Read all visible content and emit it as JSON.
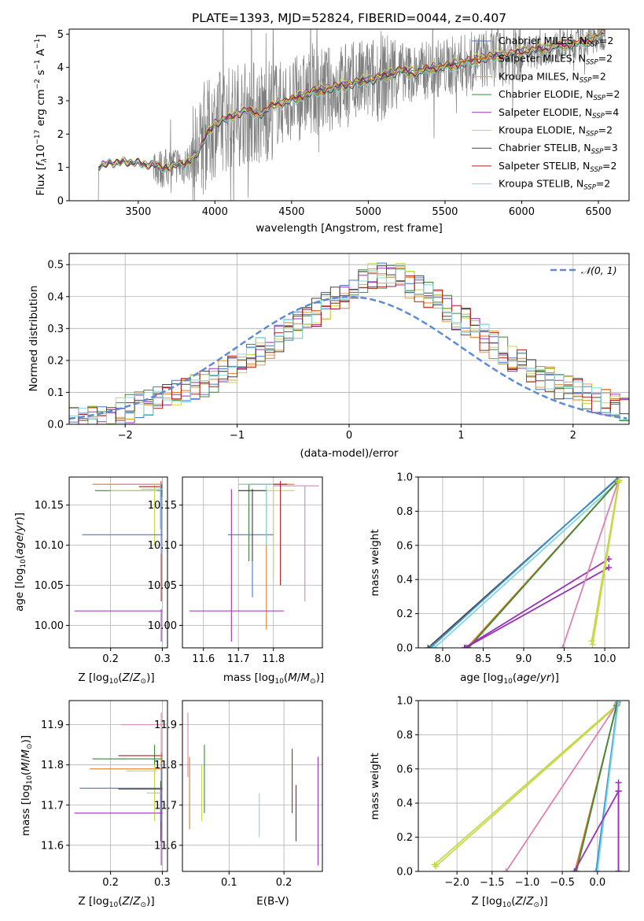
{
  "figure_title": "PLATE=1393, MJD=52824, FIBERID=0044, z=0.407",
  "colors": [
    "#3a8fd6",
    "#e07b20",
    "#3aa03a",
    "#9a32b8",
    "#c8d84a",
    "#555555",
    "#b01c1c",
    "#6fd8e0",
    "#e080b0"
  ],
  "model_legend": [
    {
      "label": "Chabrier MILES, N",
      "sub": "SSP",
      "suffix": "=2",
      "color": "#4477cc"
    },
    {
      "label": "Salpeter MILES, N",
      "sub": "SSP",
      "suffix": "=2",
      "color": "#e07b20"
    },
    {
      "label": "Kroupa MILES, N",
      "sub": "SSP",
      "suffix": "=2",
      "color": "#e0a040"
    },
    {
      "label": "Chabrier ELODIE, N",
      "sub": "SSP",
      "suffix": "=2",
      "color": "#3a8a3a"
    },
    {
      "label": "Salpeter ELODIE, N",
      "sub": "SSP",
      "suffix": "=4",
      "color": "#9a32b8"
    },
    {
      "label": "Kroupa ELODIE, N",
      "sub": "SSP",
      "suffix": "=2",
      "color": "#c8d84a"
    },
    {
      "label": "Chabrier STELIB, N",
      "sub": "SSP",
      "suffix": "=3",
      "color": "#444444"
    },
    {
      "label": "Salpeter STELIB, N",
      "sub": "SSP",
      "suffix": "=2",
      "color": "#b01c1c"
    },
    {
      "label": "Kroupa STELIB, N",
      "sub": "SSP",
      "suffix": "=2",
      "color": "#7fd8e0"
    }
  ],
  "chart_data": [
    {
      "id": "spectrum",
      "type": "line",
      "xlabel": "wavelength [Angstrom, rest frame]",
      "ylabel": "Flux [f_λ 10^-17 erg cm^-2 s^-1 A^-1]",
      "xlim": [
        3050,
        6700
      ],
      "ylim": [
        0,
        5.15
      ],
      "xticks": [
        3500,
        4000,
        4500,
        5000,
        5500,
        6000,
        6500
      ],
      "yticks": [
        0,
        1,
        2,
        3,
        4,
        5
      ],
      "model_continuum": {
        "x": [
          3240,
          3260,
          3300,
          3350,
          3400,
          3450,
          3500,
          3550,
          3600,
          3650,
          3700,
          3750,
          3800,
          3850,
          3900,
          3950,
          4000,
          4100,
          4200,
          4300,
          4400,
          4500,
          4600,
          4700,
          4800,
          4900,
          5000,
          5100,
          5200,
          5300,
          5400,
          5500,
          5600,
          5700,
          5800,
          5900,
          6000,
          6100,
          6200,
          6300,
          6400,
          6500,
          6550
        ],
        "y": [
          1.0,
          1.05,
          1.15,
          1.1,
          1.2,
          1.12,
          1.15,
          1.05,
          1.1,
          0.95,
          1.0,
          1.1,
          1.05,
          1.25,
          1.5,
          2.0,
          2.3,
          2.5,
          2.7,
          2.6,
          2.9,
          3.0,
          3.2,
          3.3,
          3.4,
          3.5,
          3.6,
          3.7,
          3.9,
          3.8,
          3.95,
          4.0,
          4.1,
          4.2,
          4.3,
          4.35,
          4.45,
          4.5,
          4.6,
          4.65,
          4.75,
          4.9,
          5.05
        ]
      }
    },
    {
      "id": "residuals",
      "type": "histogram",
      "xlabel": "(data-model)/error",
      "ylabel": "Normed distribution",
      "xlim": [
        -2.5,
        2.5
      ],
      "ylim": [
        0,
        0.535
      ],
      "xticks": [
        -2,
        -1,
        0,
        1,
        2
      ],
      "yticks": [
        0.0,
        0.1,
        0.2,
        0.3,
        0.4,
        0.5
      ],
      "legend": "𝒩(0, 1)",
      "bin_width": 0.1,
      "envelope": [
        0.01,
        0.01,
        0.02,
        0.02,
        0.03,
        0.04,
        0.05,
        0.06,
        0.07,
        0.08,
        0.09,
        0.1,
        0.11,
        0.12,
        0.13,
        0.14,
        0.16,
        0.17,
        0.19,
        0.21,
        0.23,
        0.25,
        0.27,
        0.29,
        0.31,
        0.33,
        0.35,
        0.37,
        0.39,
        0.4,
        0.42,
        0.44,
        0.46,
        0.47,
        0.47,
        0.46,
        0.44,
        0.42,
        0.4,
        0.38,
        0.36,
        0.34,
        0.32,
        0.3,
        0.27,
        0.25,
        0.23,
        0.21,
        0.19,
        0.17,
        0.15,
        0.14,
        0.12,
        0.11,
        0.1,
        0.09,
        0.08,
        0.07,
        0.06,
        0.05
      ]
    },
    {
      "id": "age_vs_Z",
      "type": "errorbar",
      "xlabel": "Z [log10(Z/Z⊙)]",
      "ylabel": "age  [log10(age/yr)]",
      "xlim": [
        0.12,
        0.31
      ],
      "ylim": [
        9.972,
        10.185
      ],
      "xticks": [
        0.2,
        0.3
      ],
      "yticks": [
        10.0,
        10.05,
        10.1,
        10.15
      ]
    },
    {
      "id": "age_vs_mass",
      "type": "errorbar",
      "xlabel": "mass [log10(M/M⊙)]",
      "xlim": [
        11.54,
        11.94
      ],
      "ylim": [
        9.972,
        10.185
      ],
      "xticks": [
        11.6,
        11.7,
        11.8
      ],
      "yticks": [
        10.0,
        10.05,
        10.1,
        10.15
      ]
    },
    {
      "id": "weight_vs_age",
      "type": "line",
      "xlabel": "age  [log10(age/yr)]",
      "ylabel": "mass weight",
      "xlim": [
        7.7,
        10.3
      ],
      "ylim": [
        0,
        1
      ],
      "xticks": [
        8.0,
        8.5,
        9.0,
        9.5,
        10.0
      ],
      "yticks": [
        0.0,
        0.2,
        0.4,
        0.6,
        0.8,
        1.0
      ]
    },
    {
      "id": "mass_vs_Z",
      "type": "errorbar",
      "xlabel": "Z [log10(Z/Z⊙)]",
      "ylabel": "mass [log10(M/M⊙)]",
      "xlim": [
        0.12,
        0.31
      ],
      "ylim": [
        11.535,
        11.96
      ],
      "xticks": [
        0.2,
        0.3
      ],
      "yticks": [
        11.6,
        11.7,
        11.8,
        11.9
      ]
    },
    {
      "id": "mass_vs_EBV",
      "type": "errorbar",
      "xlabel": "E(B-V)",
      "xlim": [
        0.015,
        0.27
      ],
      "ylim": [
        11.535,
        11.96
      ],
      "xticks": [
        0.1,
        0.2
      ],
      "yticks": [
        11.6,
        11.7,
        11.8,
        11.9
      ]
    },
    {
      "id": "weight_vs_Z",
      "type": "line",
      "xlabel": "Z [log10(Z/Z⊙)]",
      "ylabel": "mass weight",
      "xlim": [
        -2.55,
        0.45
      ],
      "ylim": [
        0,
        1
      ],
      "xticks": [
        -2.0,
        -1.5,
        -1.0,
        -0.5,
        0.0
      ],
      "yticks": [
        0.0,
        0.2,
        0.4,
        0.6,
        0.8,
        1.0
      ]
    }
  ]
}
